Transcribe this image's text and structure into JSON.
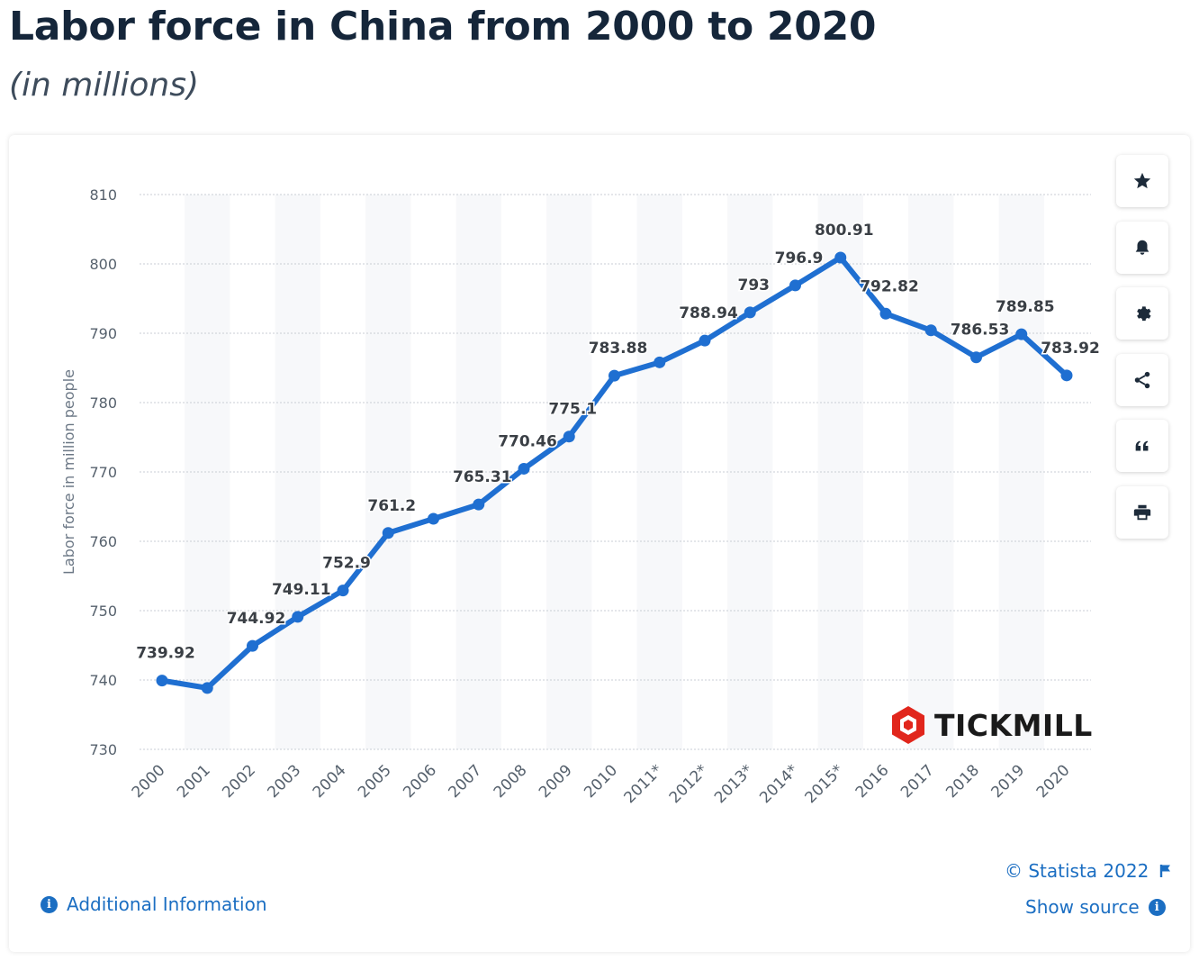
{
  "header": {
    "title": "Labor force in China from 2000 to 2020",
    "subtitle": "(in millions)"
  },
  "colors": {
    "line": "#1f6fd1",
    "accent": "#1b6ec2"
  },
  "chart_data": {
    "type": "line",
    "x": [
      "2000",
      "2001",
      "2002",
      "2003",
      "2004",
      "2005",
      "2006",
      "2007",
      "2008",
      "2009",
      "2010",
      "2011*",
      "2012*",
      "2013*",
      "2014*",
      "2015*",
      "2016",
      "2017",
      "2018",
      "2019",
      "2020"
    ],
    "series": [
      {
        "values": [
          739.92,
          738.85,
          744.92,
          749.11,
          752.9,
          761.2,
          763.25,
          765.31,
          770.46,
          775.1,
          783.88,
          785.8,
          788.94,
          793,
          796.9,
          800.91,
          792.82,
          790.42,
          786.53,
          789.85,
          783.92
        ],
        "labels": [
          "739.92",
          "",
          "744.92",
          "749.11",
          "752.9",
          "761.2",
          "",
          "765.31",
          "770.46",
          "775.1",
          "783.88",
          "",
          "788.94",
          "793",
          "796.9",
          "800.91",
          "792.82",
          "",
          "786.53",
          "789.85",
          "783.92"
        ]
      }
    ],
    "ylabel": "Labor force in million people",
    "ylim": [
      730,
      810
    ],
    "yticks": [
      730,
      740,
      750,
      760,
      770,
      780,
      790,
      800,
      810
    ],
    "grid": true
  },
  "toolbar": {
    "items": [
      {
        "name": "star-icon"
      },
      {
        "name": "bell-icon"
      },
      {
        "name": "gear-icon"
      },
      {
        "name": "share-icon"
      },
      {
        "name": "quote-icon"
      },
      {
        "name": "print-icon"
      }
    ]
  },
  "watermark": {
    "text": "TICKMILL"
  },
  "footer": {
    "copyright": "© Statista 2022",
    "show_source": "Show source",
    "additional_info": "Additional Information"
  }
}
